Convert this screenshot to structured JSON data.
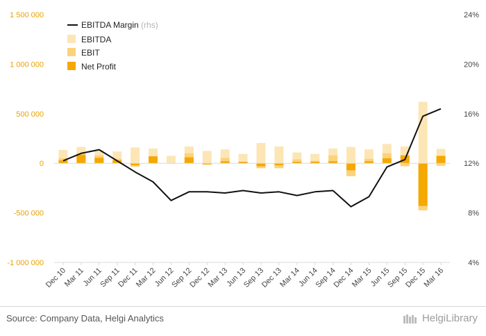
{
  "chart_data": {
    "type": "bar+line",
    "categories": [
      "Dec 10",
      "Mar 11",
      "Jun 11",
      "Sep 11",
      "Dec 11",
      "Mar 12",
      "Jun 12",
      "Sep 12",
      "Dec 12",
      "Mar 13",
      "Jun 13",
      "Sep 13",
      "Dec 13",
      "Mar 14",
      "Jun 14",
      "Sep 14",
      "Dec 14",
      "Mar 15",
      "Jun 15",
      "Sep 15",
      "Dec 15",
      "Mar 16"
    ],
    "series": [
      {
        "name": "EBITDA",
        "kind": "bar",
        "axis": "left",
        "color": "#fde6b5",
        "values": [
          135000,
          165000,
          130000,
          120000,
          160000,
          150000,
          75000,
          170000,
          125000,
          140000,
          95000,
          205000,
          170000,
          110000,
          95000,
          150000,
          165000,
          140000,
          195000,
          170000,
          620000,
          145000
        ]
      },
      {
        "name": "EBIT",
        "kind": "bar",
        "axis": "left",
        "color": "#fcd27a",
        "values": [
          50000,
          100000,
          80000,
          45000,
          -35000,
          70000,
          0,
          100000,
          -15000,
          55000,
          15000,
          -50000,
          -50000,
          40000,
          25000,
          80000,
          -130000,
          45000,
          100000,
          -30000,
          -475000,
          -25000
        ]
      },
      {
        "name": "Net Profit",
        "kind": "bar",
        "axis": "left",
        "color": "#f5a800",
        "values": [
          30000,
          85000,
          55000,
          30000,
          -20000,
          70000,
          0,
          60000,
          -10000,
          20000,
          15000,
          -30000,
          -20000,
          15000,
          15000,
          20000,
          -70000,
          20000,
          50000,
          80000,
          -430000,
          75000
        ]
      },
      {
        "name": "EBITDA Margin",
        "kind": "line",
        "axis": "right",
        "color": "#111111",
        "values": [
          12.2,
          12.8,
          13.1,
          12.2,
          11.3,
          10.5,
          9.0,
          9.7,
          9.7,
          9.6,
          9.8,
          9.6,
          9.7,
          9.4,
          9.7,
          9.8,
          8.5,
          9.3,
          11.7,
          12.3,
          15.8,
          16.4
        ]
      }
    ],
    "legend": {
      "position": "top-left",
      "rhs_note": "(rhs)"
    },
    "y_left": {
      "min": -1000000,
      "max": 1500000,
      "ticks": [
        1500000,
        1000000,
        500000,
        0,
        -500000,
        -1000000
      ],
      "tick_labels": [
        "1 500 000",
        "1 000 000",
        "500 000",
        "0",
        "-500 000",
        "-1 000 000"
      ]
    },
    "y_right": {
      "min": 4,
      "max": 24,
      "ticks": [
        24,
        20,
        16,
        12,
        8,
        4
      ],
      "tick_labels": [
        "24%",
        "20%",
        "16%",
        "12%",
        "8%",
        "4%"
      ]
    },
    "grid": false
  },
  "footer": {
    "source": "Source: Company Data, Helgi Analytics",
    "brand": "HelgiLibrary"
  },
  "colors": {
    "left_axis": "#e8a300",
    "text": "#444444",
    "axis_line": "#d9d9d9"
  }
}
